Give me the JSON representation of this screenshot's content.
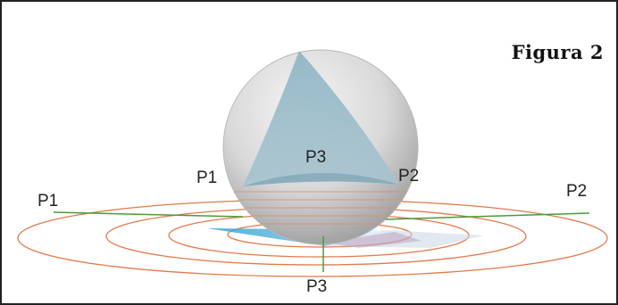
{
  "caption": "Figura 2",
  "labels": {
    "sphere_p1": "P1",
    "sphere_p2": "P2",
    "sphere_p3": "P3",
    "plane_p1": "P1",
    "plane_p2": "P2",
    "plane_p3": "P3"
  },
  "colors": {
    "frame": "#222222",
    "sphere": "#d6d6d6",
    "triangle": "#8fb3c2",
    "orbits": "#e07a4a",
    "projection_lines": "#4a9a3a",
    "projected_triangle": "#39a9d6"
  }
}
